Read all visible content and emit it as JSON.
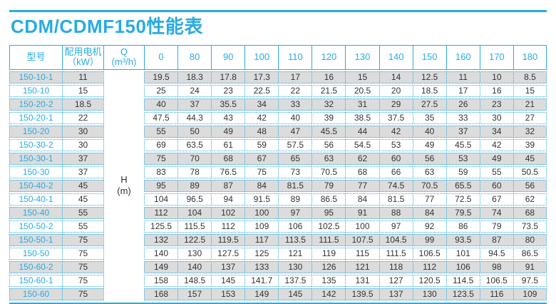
{
  "title": "CDM/CDMF150性能表",
  "colors": {
    "accent": "#29ABE2",
    "row_alt_background": "#DCDCDC",
    "text_dark": "#333333"
  },
  "table": {
    "header": {
      "model": "型号",
      "motor_line1": "配用电机",
      "motor_line2": "（kW）",
      "q_line1": "Q",
      "q_line2": "(m³/h)",
      "flows": [
        "0",
        "80",
        "90",
        "100",
        "110",
        "120",
        "130",
        "140",
        "150",
        "160",
        "170",
        "180"
      ]
    },
    "head_unit_line1": "H",
    "head_unit_line2": "(m)",
    "rows": [
      {
        "model": "150-10-1",
        "kw": "11",
        "values": [
          "19.5",
          "18.3",
          "17.8",
          "17.3",
          "17",
          "16",
          "15",
          "14",
          "12.5",
          "11",
          "10",
          "8.5"
        ]
      },
      {
        "model": "150-10",
        "kw": "15",
        "values": [
          "25",
          "24",
          "23",
          "22.5",
          "22",
          "21.5",
          "20.5",
          "20",
          "18.5",
          "17",
          "16",
          "15"
        ]
      },
      {
        "model": "150-20-2",
        "kw": "18.5",
        "values": [
          "40",
          "37",
          "35.5",
          "34",
          "33",
          "32",
          "31",
          "29",
          "27.5",
          "26",
          "23",
          "21"
        ]
      },
      {
        "model": "150-20-1",
        "kw": "22",
        "values": [
          "47.5",
          "44.3",
          "43",
          "42",
          "40",
          "39",
          "38.5",
          "37.5",
          "35",
          "33",
          "30",
          "27"
        ]
      },
      {
        "model": "150-20",
        "kw": "30",
        "values": [
          "55",
          "50",
          "49",
          "48",
          "47",
          "45.5",
          "44",
          "42",
          "40",
          "37",
          "34",
          "32"
        ]
      },
      {
        "model": "150-30-2",
        "kw": "30",
        "values": [
          "69",
          "63.5",
          "61",
          "59",
          "57.5",
          "56",
          "54.5",
          "53",
          "49",
          "45.5",
          "42",
          "39"
        ]
      },
      {
        "model": "150-30-1",
        "kw": "37",
        "values": [
          "75",
          "70",
          "68",
          "67",
          "65",
          "63",
          "62",
          "60",
          "56",
          "53",
          "49",
          "45"
        ]
      },
      {
        "model": "150-30",
        "kw": "37",
        "values": [
          "83",
          "78",
          "76.5",
          "75",
          "73",
          "70.5",
          "68",
          "66",
          "63",
          "59",
          "55",
          "50.5"
        ]
      },
      {
        "model": "150-40-2",
        "kw": "45",
        "values": [
          "95",
          "89",
          "87",
          "84",
          "81.5",
          "79",
          "77",
          "74.5",
          "70.5",
          "65.5",
          "60",
          "56"
        ]
      },
      {
        "model": "150-40-1",
        "kw": "45",
        "values": [
          "104",
          "96.5",
          "94",
          "91.5",
          "89",
          "86.5",
          "84",
          "81.5",
          "77",
          "72.5",
          "67",
          "62"
        ]
      },
      {
        "model": "150-40",
        "kw": "55",
        "values": [
          "112",
          "104",
          "102",
          "100",
          "97",
          "95",
          "91",
          "88",
          "84",
          "79.5",
          "74",
          "68"
        ]
      },
      {
        "model": "150-50-2",
        "kw": "55",
        "values": [
          "125.5",
          "115.5",
          "112",
          "109",
          "106",
          "102.5",
          "100",
          "97",
          "92",
          "86",
          "79",
          "73.5"
        ]
      },
      {
        "model": "150-50-1",
        "kw": "75",
        "values": [
          "132",
          "122.5",
          "119.5",
          "117",
          "113.5",
          "111.5",
          "107.5",
          "104.5",
          "99",
          "93.5",
          "87",
          "80"
        ]
      },
      {
        "model": "150-50",
        "kw": "75",
        "values": [
          "140",
          "130",
          "127.5",
          "125",
          "121",
          "119",
          "115",
          "111.5",
          "106.5",
          "101",
          "94.5",
          "86.5"
        ]
      },
      {
        "model": "150-60-2",
        "kw": "75",
        "values": [
          "149",
          "140",
          "137",
          "133",
          "130",
          "126",
          "121",
          "118",
          "112",
          "106",
          "98",
          "91"
        ]
      },
      {
        "model": "150-60-1",
        "kw": "75",
        "values": [
          "158",
          "148.5",
          "145",
          "141.7",
          "137.5",
          "135",
          "131",
          "127",
          "120.5",
          "114.5",
          "106.5",
          "97.5"
        ]
      },
      {
        "model": "150-60",
        "kw": "75",
        "values": [
          "168",
          "157",
          "153",
          "149",
          "145",
          "142",
          "139.5",
          "137",
          "130",
          "123.5",
          "116",
          "109"
        ]
      }
    ]
  }
}
